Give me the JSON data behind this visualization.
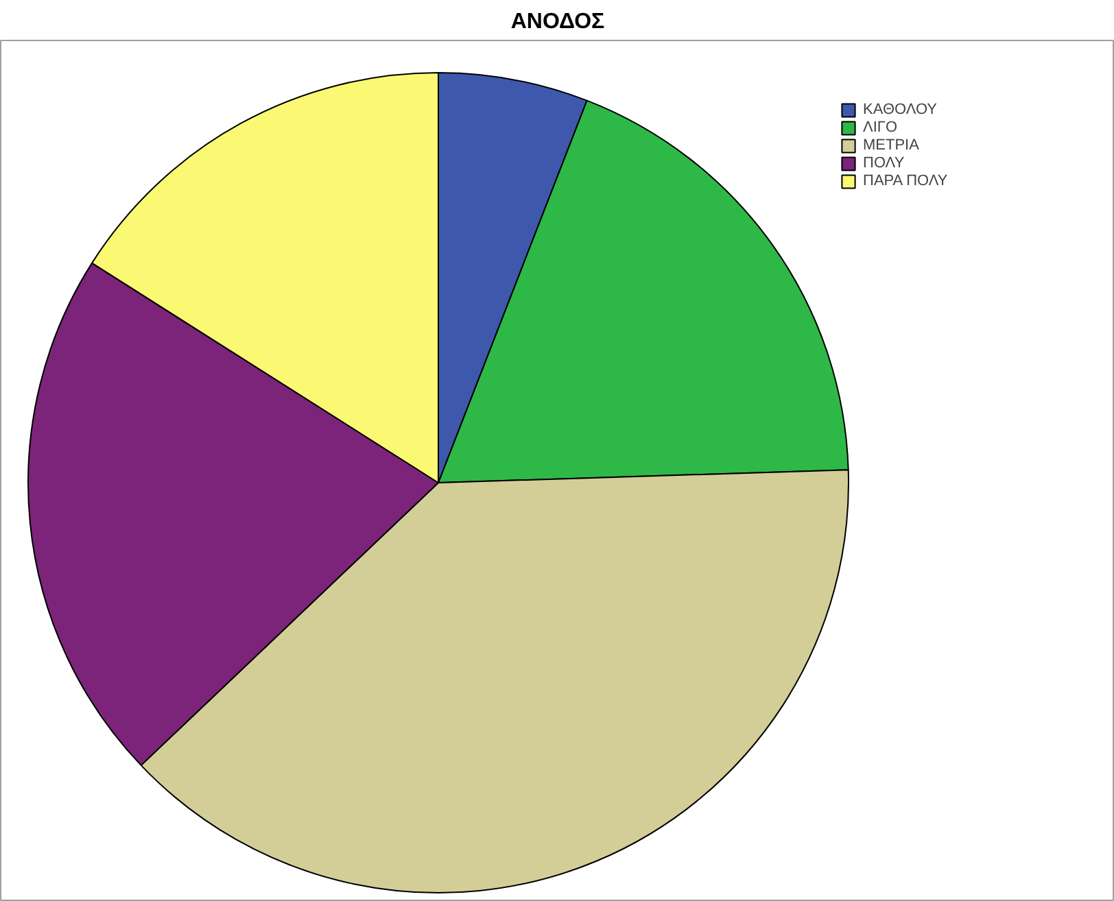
{
  "chart_data": {
    "type": "pie",
    "title": "ΑΝΟΔΟΣ",
    "categories": [
      "ΚΑΘΟΛΟΥ",
      "ΛΙΓΟ",
      "ΜΕΤΡΙΑ",
      "ΠΟΛΥ",
      "ΠΑΡΑ ΠΟΛΥ"
    ],
    "values": [
      5.9,
      18.6,
      38.4,
      21.1,
      16.0
    ],
    "colors": [
      "#3e58ac",
      "#2eb848",
      "#d3ce97",
      "#7b2479",
      "#fbf873"
    ],
    "legend": "top right"
  }
}
